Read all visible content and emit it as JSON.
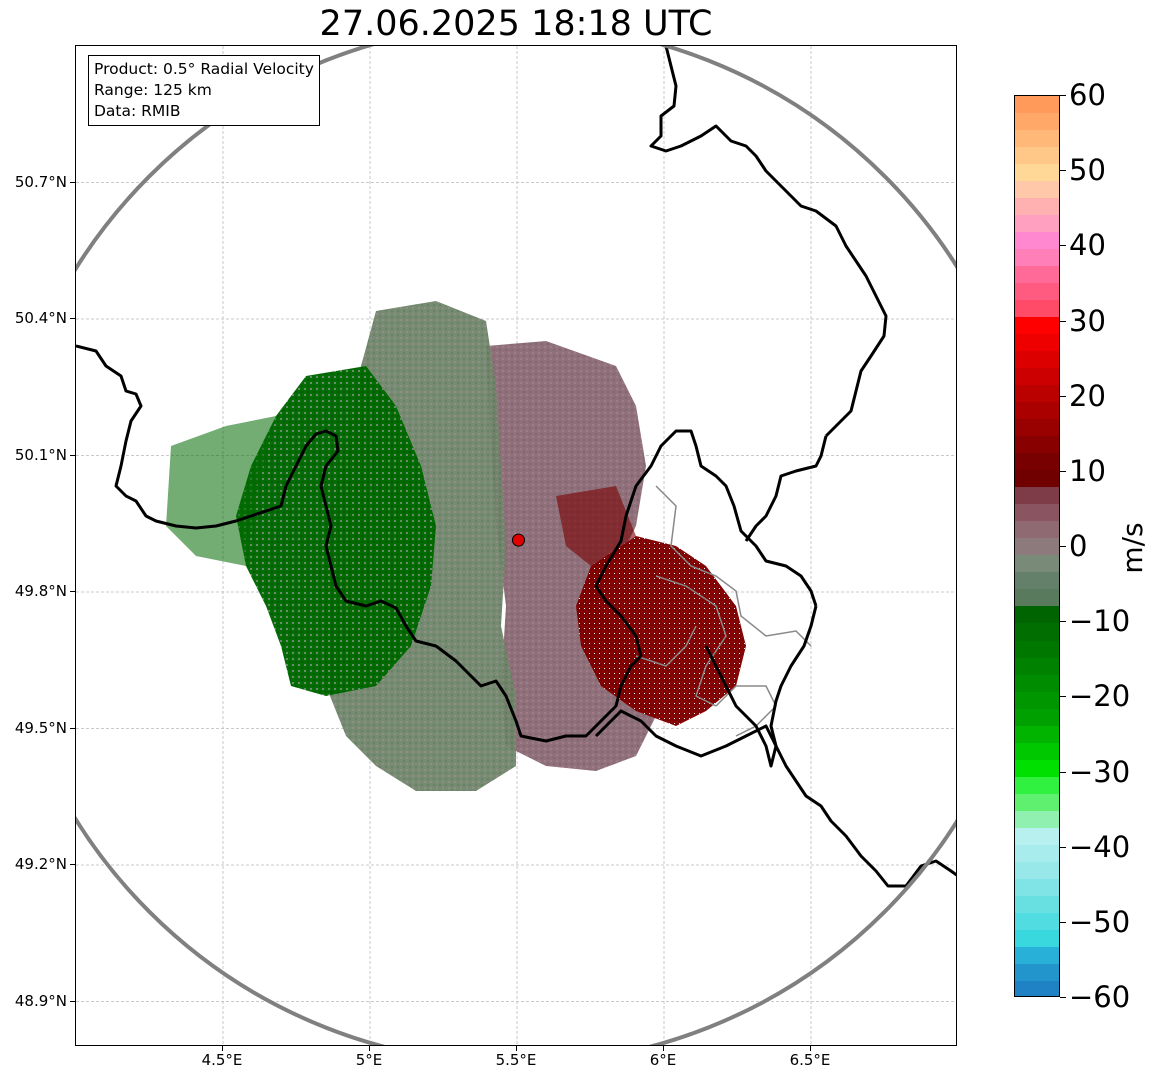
{
  "title": "27.06.2025 18:18 UTC",
  "info_box": {
    "product": "Product: 0.5° Radial Velocity",
    "range": "Range: 125 km",
    "data": "Data: RMIB"
  },
  "map": {
    "lon_range": [
      4.0,
      7.0
    ],
    "lat_range": [
      48.8,
      51.0
    ],
    "x_ticks": [
      {
        "value": 4.5,
        "label": "4.5°E"
      },
      {
        "value": 5.0,
        "label": "5°E"
      },
      {
        "value": 5.5,
        "label": "5.5°E"
      },
      {
        "value": 6.0,
        "label": "6°E"
      },
      {
        "value": 6.5,
        "label": "6.5°E"
      }
    ],
    "y_ticks": [
      {
        "value": 50.7,
        "label": "50.7°N"
      },
      {
        "value": 50.4,
        "label": "50.4°N"
      },
      {
        "value": 50.1,
        "label": "50.1°N"
      },
      {
        "value": 49.8,
        "label": "49.8°N"
      },
      {
        "value": 49.5,
        "label": "49.5°N"
      },
      {
        "value": 49.2,
        "label": "49.2°N"
      },
      {
        "value": 48.9,
        "label": "48.9°N"
      }
    ],
    "radar_site": {
      "lon": 5.505,
      "lat": 49.914,
      "color": "#e00000",
      "marker": "circle"
    },
    "range_ring_color": "#808080",
    "border_color": "#000000",
    "subregion_border_color": "#888888",
    "grid": true
  },
  "colorbar": {
    "unit": "m/s",
    "min": -60,
    "max": 60,
    "ticks": [
      {
        "value": 60,
        "label": "60"
      },
      {
        "value": 50,
        "label": "50"
      },
      {
        "value": 40,
        "label": "40"
      },
      {
        "value": 30,
        "label": "30"
      },
      {
        "value": 20,
        "label": "20"
      },
      {
        "value": 10,
        "label": "10"
      },
      {
        "value": 0,
        "label": "0"
      },
      {
        "value": -10,
        "label": "−10"
      },
      {
        "value": -20,
        "label": "−20"
      },
      {
        "value": -30,
        "label": "−30"
      },
      {
        "value": -40,
        "label": "−40"
      },
      {
        "value": -50,
        "label": "−50"
      },
      {
        "value": -60,
        "label": "−60"
      }
    ],
    "segments_top_to_bottom": [
      "#ff9a5a",
      "#ffa868",
      "#ffb878",
      "#ffc888",
      "#ffd898",
      "#ffc8a8",
      "#ffb0b0",
      "#ffa0c0",
      "#ff88d0",
      "#ff80b8",
      "#ff6a98",
      "#ff5a80",
      "#ff4a68",
      "#ff0000",
      "#ee0000",
      "#dd0000",
      "#cc0000",
      "#bb0000",
      "#aa0000",
      "#990000",
      "#880000",
      "#780000",
      "#700000",
      "#7d3c48",
      "#8a5560",
      "#8f6a72",
      "#8c7a7c",
      "#7a8a78",
      "#65806a",
      "#5a7a5e",
      "#006400",
      "#006e00",
      "#007800",
      "#008200",
      "#008c00",
      "#009600",
      "#00a000",
      "#00b400",
      "#00c800",
      "#00e000",
      "#30f040",
      "#60f070",
      "#90f0b0",
      "#b8f0f0",
      "#a8ecee",
      "#98e8ea",
      "#80e4e6",
      "#68e0e2",
      "#50dce0",
      "#38d8de",
      "#28b0d8",
      "#2296cc",
      "#1e82c4"
    ]
  }
}
